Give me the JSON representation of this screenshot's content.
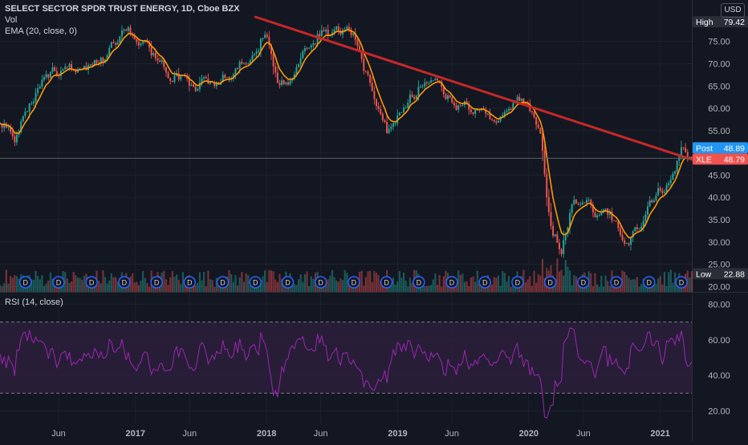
{
  "legend": {
    "title": "SELECT SECTOR SPDR TRUST ENERGY, 1D, Cboe BZX",
    "volume": "Vol",
    "ema": "EMA (20, close, 0)",
    "rsi": "RSI (14, close)"
  },
  "currency": "USD",
  "colors": {
    "background": "#131722",
    "grid": "#1e222d",
    "up": "#26a69a",
    "down": "#ef5350",
    "ema": "#ff9800",
    "trendline": "#c62828",
    "rsi": "#9c27b0",
    "rsi_band_fill": "#2a1e3a",
    "axis_text": "#b2b5be",
    "post_label": "#2196f3",
    "last_label": "#ef5350",
    "hl_label": "#2a2e39"
  },
  "chart_data": [
    {
      "type": "candlestick",
      "title": "SELECT SECTOR SPDR TRUST ENERGY, 1D, Cboe BZX",
      "x_axis_ticks": [
        "Jun",
        "2017",
        "Jun",
        "2018",
        "Jun",
        "2019",
        "Jun",
        "2020",
        "Jun",
        "2021"
      ],
      "x_tick_dates": [
        "2016-06",
        "2017-01",
        "2017-06",
        "2018-01",
        "2018-06",
        "2019-01",
        "2019-06",
        "2020-01",
        "2020-06",
        "2021-01"
      ],
      "x_range": [
        "2016-01-04",
        "2021-04-13"
      ],
      "y_axis_ticks": [
        20.0,
        25.0,
        30.0,
        35.0,
        40.0,
        45.0,
        50.0,
        55.0,
        60.0,
        65.0,
        70.0,
        75.0
      ],
      "ylim": [
        18.8,
        84.3
      ],
      "price_labels": {
        "high": {
          "label": "High",
          "value": "79.42"
        },
        "post": {
          "label": "Post",
          "value": "48.89"
        },
        "last": {
          "label": "XLE",
          "value": "48.79"
        },
        "low": {
          "label": "Low",
          "value": "22.88"
        }
      },
      "close_series": {
        "name": "XLE",
        "dates": [
          "2016-01",
          "2016-02",
          "2016-03",
          "2016-05",
          "2016-06",
          "2016-08",
          "2016-10",
          "2016-12",
          "2017-01",
          "2017-02",
          "2017-04",
          "2017-06",
          "2017-08",
          "2017-10",
          "2017-12",
          "2018-01",
          "2018-02",
          "2018-03",
          "2018-05",
          "2018-06",
          "2018-07",
          "2018-08",
          "2018-09",
          "2018-10",
          "2018-11",
          "2018-12",
          "2019-02",
          "2019-04",
          "2019-06",
          "2019-08",
          "2019-09",
          "2019-10",
          "2019-12",
          "2020-01",
          "2020-02",
          "2020-03",
          "2020-04",
          "2020-05",
          "2020-06",
          "2020-07",
          "2020-08",
          "2020-09",
          "2020-10",
          "2020-11",
          "2020-12",
          "2021-01",
          "2021-02",
          "2021-03",
          "2021-04"
        ],
        "close": [
          57.0,
          53.0,
          59.0,
          67.0,
          69.0,
          69.0,
          71.0,
          76.0,
          77.0,
          73.0,
          68.5,
          65.0,
          66.0,
          68.0,
          72.0,
          78.0,
          67.0,
          66.0,
          76.0,
          77.5,
          75.0,
          76.0,
          77.0,
          69.0,
          63.0,
          55.0,
          63.0,
          66.5,
          62.0,
          59.0,
          60.5,
          58.0,
          61.0,
          61.5,
          55.0,
          33.0,
          28.5,
          38.0,
          41.0,
          37.0,
          36.5,
          34.0,
          30.0,
          33.0,
          40.0,
          42.0,
          44.0,
          51.0,
          48.8
        ]
      },
      "ema": {
        "name": "EMA (20, close, 0)",
        "period": 20
      },
      "trendline": {
        "start": [
          "2017-12-15",
          80.5
        ],
        "end": [
          "2021-04-13",
          48.5
        ]
      },
      "dividend_marker": "D",
      "dividend_dates": [
        "2016-03",
        "2016-06",
        "2016-09",
        "2016-12",
        "2017-03",
        "2017-06",
        "2017-09",
        "2017-12",
        "2018-03",
        "2018-06",
        "2018-09",
        "2018-12",
        "2019-03",
        "2019-06",
        "2019-09",
        "2019-12",
        "2020-03",
        "2020-06",
        "2020-09",
        "2020-12",
        "2021-03"
      ],
      "volume": {
        "name": "Vol"
      }
    },
    {
      "type": "line",
      "title": "RSI (14, close)",
      "y_axis_ticks": [
        20.0,
        40.0,
        60.0,
        80.0
      ],
      "ylim": [
        13,
        87
      ],
      "bands": [
        30,
        70
      ]
    }
  ]
}
